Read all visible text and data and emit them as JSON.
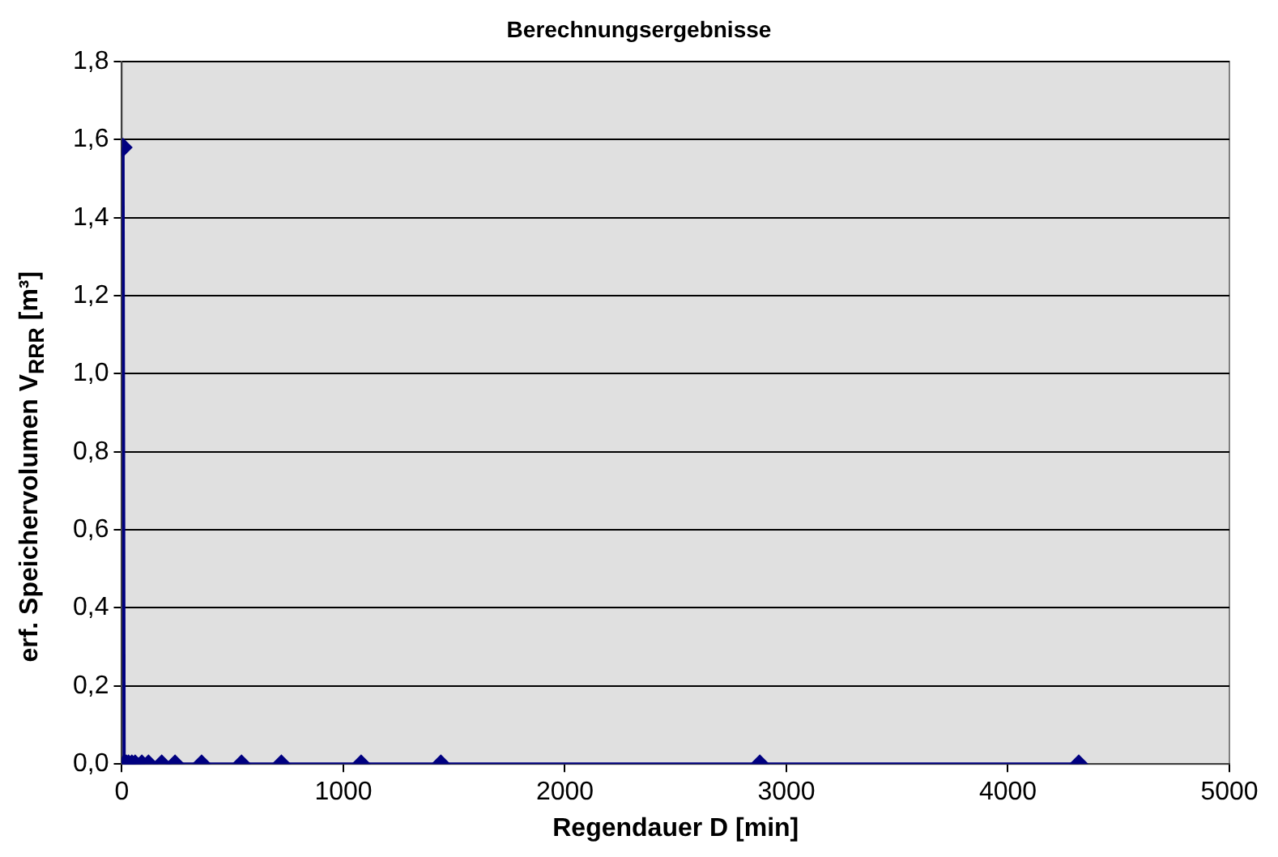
{
  "chart_data": {
    "type": "line",
    "title": "Berechnungsergebnisse",
    "xlabel": "Regendauer D [min]",
    "ylabel": "erf. Speichervolumen V$_{RRR}$ [m³]",
    "x": [
      5,
      10,
      15,
      20,
      30,
      45,
      60,
      90,
      120,
      180,
      240,
      360,
      540,
      720,
      1080,
      1440,
      2880,
      4320
    ],
    "series": [
      {
        "color": "#000080",
        "values": [
          1.58,
          0,
          0,
          0,
          0,
          0,
          0,
          0,
          0,
          0,
          0,
          0,
          0,
          0,
          0,
          0,
          0,
          0
        ]
      }
    ],
    "xlim": [
      0,
      5000
    ],
    "xticks": [
      0,
      1000,
      2000,
      3000,
      4000,
      5000
    ],
    "ylim": [
      0,
      1.8
    ],
    "yticks": [
      {
        "value": 0,
        "label": "0,0"
      },
      {
        "value": 0.2,
        "label": "0,2"
      },
      {
        "value": 0.4,
        "label": "0,4"
      },
      {
        "value": 0.6,
        "label": "0,6"
      },
      {
        "value": 0.8,
        "label": "0,8"
      },
      {
        "value": 1.0,
        "label": "1,0"
      },
      {
        "value": 1.2,
        "label": "1,2"
      },
      {
        "value": 1.4,
        "label": "1,4"
      },
      {
        "value": 1.6,
        "label": "1,6"
      },
      {
        "value": 1.8,
        "label": "1,8"
      }
    ],
    "grid": "y",
    "legend": false,
    "marker": "diamond",
    "line_style": "solid"
  }
}
